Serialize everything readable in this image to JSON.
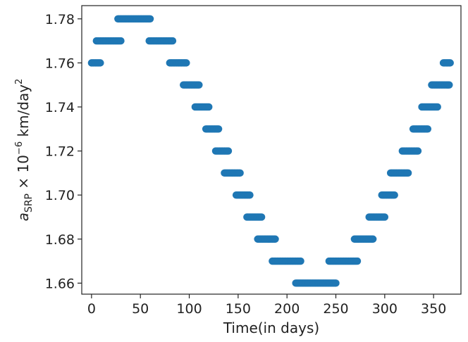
{
  "chart_data": {
    "type": "scatter",
    "title": "",
    "xlabel": "Time(in days)",
    "ylabel": {
      "base": "a",
      "sub": "SRP",
      "times": " × 10",
      "exp": "−6",
      "unit": " km/day",
      "unit_exp": "2"
    },
    "xlim": [
      -10,
      378
    ],
    "ylim": [
      1.655,
      1.786
    ],
    "xticks": [
      0,
      50,
      100,
      150,
      200,
      250,
      300,
      350
    ],
    "xtick_labels": [
      "0",
      "50",
      "100",
      "150",
      "200",
      "250",
      "300",
      "350"
    ],
    "yticks": [
      1.66,
      1.68,
      1.7,
      1.72,
      1.74,
      1.76,
      1.78
    ],
    "ytick_labels": [
      "1.66",
      "1.68",
      "1.70",
      "1.72",
      "1.74",
      "1.76",
      "1.78"
    ],
    "grid": false,
    "marker_color": "#1f77b4",
    "segments": [
      {
        "x_start": 0,
        "x_end": 9,
        "y": 1.76
      },
      {
        "x_start": 5,
        "x_end": 30,
        "y": 1.77
      },
      {
        "x_start": 27,
        "x_end": 60,
        "y": 1.78
      },
      {
        "x_start": 59,
        "x_end": 83,
        "y": 1.77
      },
      {
        "x_start": 80,
        "x_end": 97,
        "y": 1.76
      },
      {
        "x_start": 94,
        "x_end": 110,
        "y": 1.75
      },
      {
        "x_start": 106,
        "x_end": 120,
        "y": 1.74
      },
      {
        "x_start": 117,
        "x_end": 130,
        "y": 1.73
      },
      {
        "x_start": 127,
        "x_end": 140,
        "y": 1.72
      },
      {
        "x_start": 136,
        "x_end": 152,
        "y": 1.71
      },
      {
        "x_start": 148,
        "x_end": 162,
        "y": 1.7
      },
      {
        "x_start": 159,
        "x_end": 174,
        "y": 1.69
      },
      {
        "x_start": 170,
        "x_end": 188,
        "y": 1.68
      },
      {
        "x_start": 185,
        "x_end": 214,
        "y": 1.67
      },
      {
        "x_start": 209,
        "x_end": 250,
        "y": 1.66
      },
      {
        "x_start": 243,
        "x_end": 272,
        "y": 1.67
      },
      {
        "x_start": 269,
        "x_end": 288,
        "y": 1.68
      },
      {
        "x_start": 284,
        "x_end": 300,
        "y": 1.69
      },
      {
        "x_start": 297,
        "x_end": 310,
        "y": 1.7
      },
      {
        "x_start": 306,
        "x_end": 324,
        "y": 1.71
      },
      {
        "x_start": 318,
        "x_end": 334,
        "y": 1.72
      },
      {
        "x_start": 329,
        "x_end": 344,
        "y": 1.73
      },
      {
        "x_start": 338,
        "x_end": 354,
        "y": 1.74
      },
      {
        "x_start": 348,
        "x_end": 366,
        "y": 1.75
      },
      {
        "x_start": 360,
        "x_end": 367,
        "y": 1.76
      }
    ]
  }
}
